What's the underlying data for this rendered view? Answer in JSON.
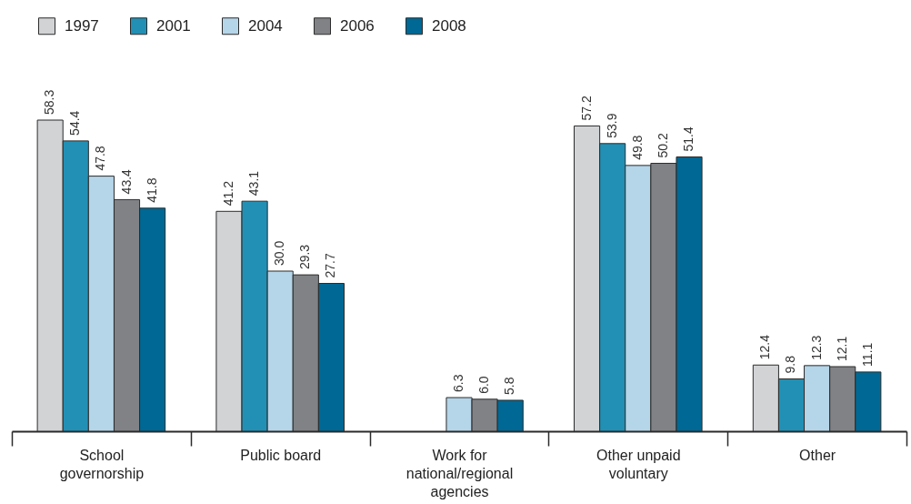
{
  "chart_data": {
    "type": "bar",
    "categories": [
      "School governorship",
      "Public board",
      "Work for national/regional agencies",
      "Other unpaid voluntary",
      "Other"
    ],
    "series": [
      {
        "name": "1997",
        "color": "#d1d3d5",
        "values": [
          58.3,
          41.2,
          null,
          57.2,
          12.4
        ],
        "value_labels": [
          "58.3",
          "41.2",
          null,
          "57.2",
          "12.4"
        ]
      },
      {
        "name": "2001",
        "color": "#2290b5",
        "values": [
          54.4,
          43.1,
          null,
          53.9,
          9.8
        ],
        "value_labels": [
          "54.4",
          "43.1",
          null,
          "53.9",
          "9.8"
        ]
      },
      {
        "name": "2004",
        "color": "#b5d5e8",
        "values": [
          47.8,
          30.0,
          6.3,
          49.8,
          12.3
        ],
        "value_labels": [
          "47.8",
          "30.0",
          "6.3",
          "49.8",
          "12.3"
        ]
      },
      {
        "name": "2006",
        "color": "#808285",
        "values": [
          43.4,
          29.3,
          6.0,
          50.2,
          12.1
        ],
        "value_labels": [
          "43.4",
          "29.3",
          "6.0",
          "50.2",
          "12.1"
        ]
      },
      {
        "name": "2008",
        "color": "#006894",
        "values": [
          41.8,
          27.7,
          5.8,
          51.4,
          11.1
        ],
        "value_labels": [
          "41.8",
          "27.7",
          "5.8",
          "51.4",
          "11.1"
        ]
      }
    ],
    "legend": "top left",
    "tick_labels": "x"
  }
}
